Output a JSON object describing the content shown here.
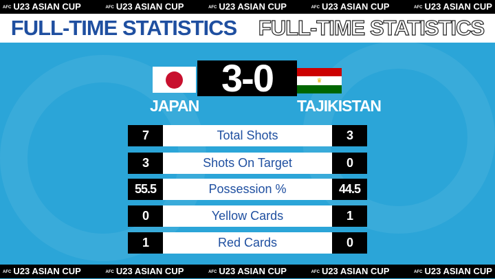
{
  "ticker": {
    "text": "U23 ASIAN CUP",
    "small": "AFC"
  },
  "title": "FULL-TIME STATISTICS",
  "match": {
    "home": "JAPAN",
    "away": "TAJIKISTAN",
    "score": "3-0"
  },
  "colors": {
    "background": "#2ba5d8",
    "title": "#1f4fa0",
    "label": "#1f4fa0"
  },
  "stats": [
    {
      "label": "Total Shots",
      "home": "7",
      "away": "3"
    },
    {
      "label": "Shots On Target",
      "home": "3",
      "away": "0"
    },
    {
      "label": "Possession %",
      "home": "55.5",
      "away": "44.5"
    },
    {
      "label": "Yellow Cards",
      "home": "0",
      "away": "1"
    },
    {
      "label": "Red Cards",
      "home": "1",
      "away": "0"
    }
  ]
}
